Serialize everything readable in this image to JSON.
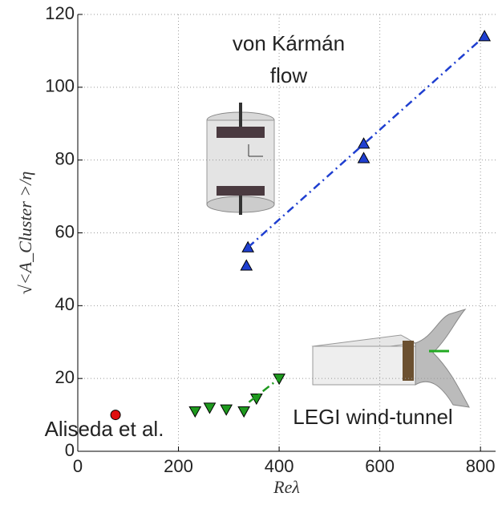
{
  "chart_data": {
    "type": "scatter",
    "x_label": "Reλ",
    "y_label": "√<A_Cluster >/η",
    "xlim": [
      0,
      830
    ],
    "ylim": [
      0,
      120
    ],
    "xticks": [
      0,
      200,
      400,
      600,
      800
    ],
    "yticks": [
      0,
      20,
      40,
      60,
      80,
      100,
      120
    ],
    "grid": true,
    "annotations": [
      "von Kármán",
      "flow",
      "LEGI wind-tunnel",
      "Aliseda et al."
    ],
    "series": [
      {
        "color": "#1f3fd0",
        "marker": "triangle-up",
        "x": [
          335,
          338,
          568,
          568,
          808
        ],
        "values": [
          51,
          56,
          80.5,
          84.5,
          114
        ]
      },
      {
        "color": "#1f3fd0",
        "line": "dashed",
        "x": [
          338,
          808
        ],
        "values": [
          56,
          114
        ]
      },
      {
        "color": "#1e9a1e",
        "marker": "triangle-down",
        "x": [
          233,
          262,
          295,
          330,
          355,
          400
        ],
        "values": [
          11,
          12,
          11.5,
          11,
          14.5,
          20
        ]
      },
      {
        "color": "#1e9a1e",
        "line": "dashed",
        "x": [
          340,
          400
        ],
        "values": [
          13.5,
          20
        ]
      },
      {
        "color": "#e01010",
        "marker": "circle",
        "x": [
          75
        ],
        "values": [
          10
        ]
      }
    ]
  }
}
